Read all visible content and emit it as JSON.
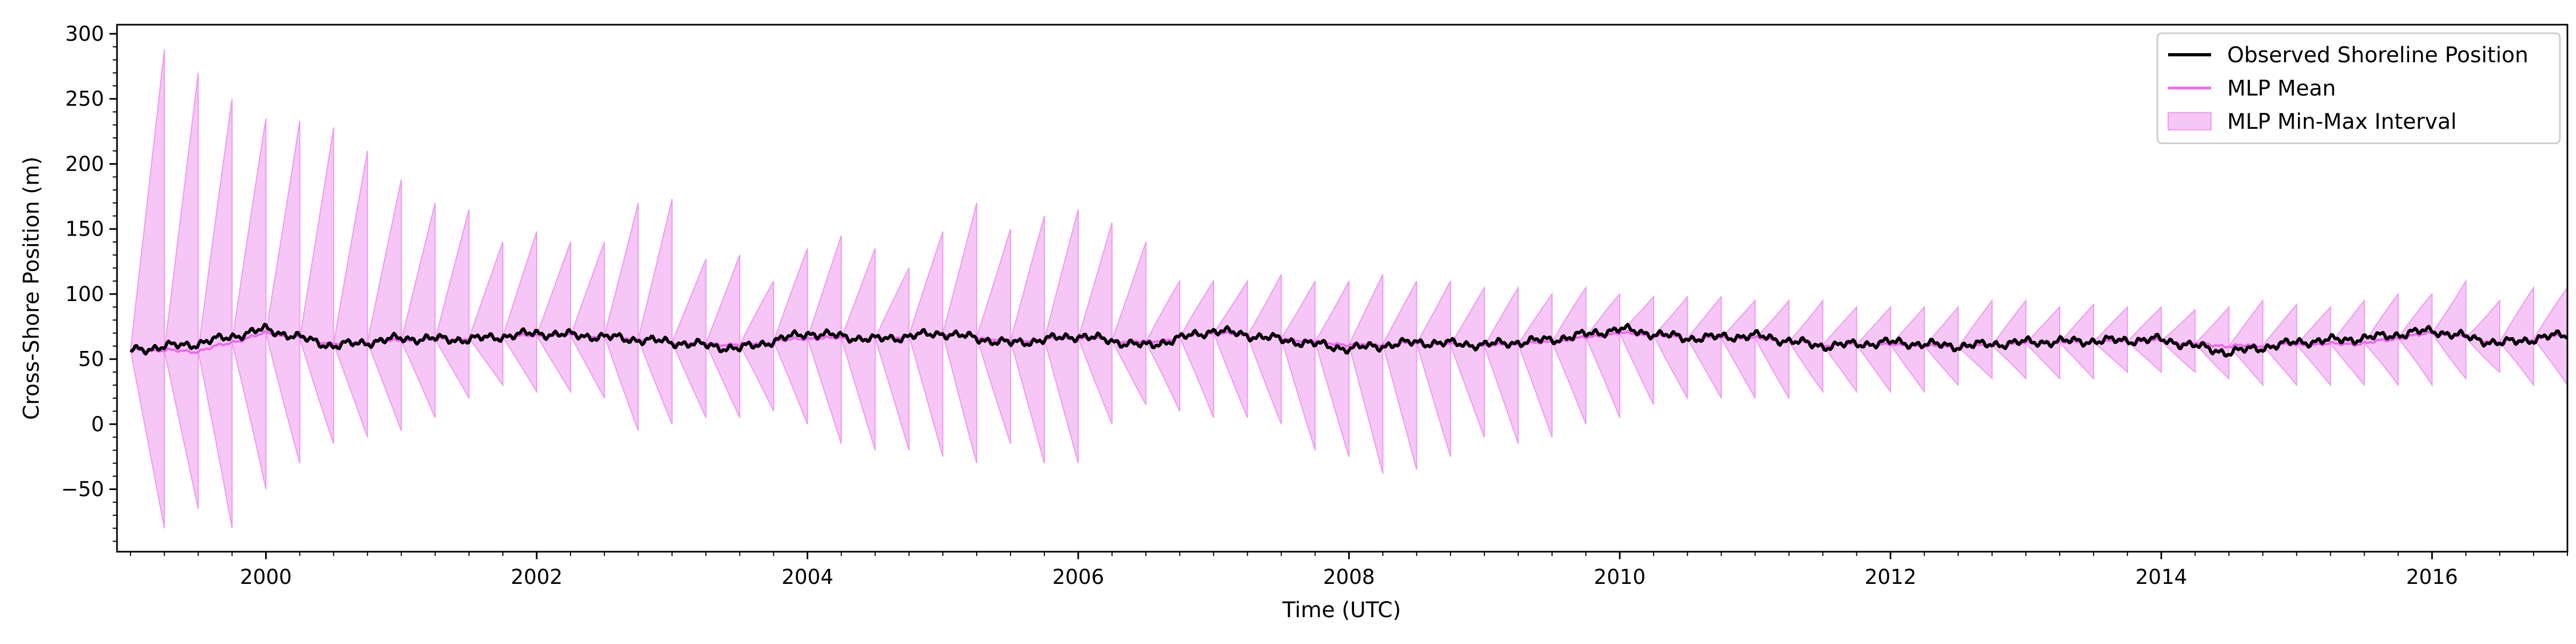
{
  "chart_data": {
    "type": "line",
    "title": "",
    "xlabel": "Time (UTC)",
    "ylabel": "Cross-Shore Position (m)",
    "xlim": [
      1998.9,
      2017.0
    ],
    "ylim": [
      -98,
      307
    ],
    "xticks": [
      2000,
      2002,
      2004,
      2006,
      2008,
      2010,
      2012,
      2014,
      2016
    ],
    "xtick_labels": [
      "2000",
      "2002",
      "2004",
      "2006",
      "2008",
      "2010",
      "2012",
      "2014",
      "2016"
    ],
    "yticks": [
      -50,
      0,
      50,
      100,
      150,
      200,
      250,
      300
    ],
    "ytick_labels": [
      "−50",
      "0",
      "50",
      "100",
      "150",
      "200",
      "250",
      "300"
    ],
    "grid": false,
    "legend_position": "top-right",
    "colors": {
      "observed": "#000000",
      "mean": "#ee66ee",
      "band_fill": "#f6c6f6",
      "band_edge": "#ee99ee"
    },
    "series": [
      {
        "name": "Observed Shoreline Position",
        "style": "line",
        "color": "#000000",
        "x": [
          1999.0,
          1999.5,
          2000.0,
          2000.5,
          2001.0,
          2001.5,
          2002.0,
          2002.5,
          2003.0,
          2003.5,
          2004.0,
          2004.5,
          2005.0,
          2005.5,
          2006.0,
          2006.5,
          2007.0,
          2007.5,
          2008.0,
          2008.5,
          2009.0,
          2009.5,
          2010.0,
          2010.5,
          2011.0,
          2011.5,
          2012.0,
          2012.5,
          2013.0,
          2013.5,
          2014.0,
          2014.5,
          2015.0,
          2015.5,
          2016.0,
          2016.5,
          2017.0
        ],
        "values": [
          57,
          62,
          73,
          60,
          66,
          65,
          70,
          67,
          63,
          58,
          70,
          65,
          70,
          62,
          68,
          60,
          72,
          65,
          58,
          63,
          61,
          65,
          73,
          66,
          68,
          60,
          63,
          60,
          63,
          64,
          65,
          55,
          63,
          66,
          72,
          62,
          69
        ]
      },
      {
        "name": "MLP Mean",
        "style": "line",
        "color": "#ee66ee",
        "x": [
          1999.0,
          1999.5,
          2000.0,
          2000.5,
          2001.0,
          2001.5,
          2002.0,
          2002.5,
          2003.0,
          2003.5,
          2004.0,
          2004.5,
          2005.0,
          2005.5,
          2006.0,
          2006.5,
          2007.0,
          2007.5,
          2008.0,
          2008.5,
          2009.0,
          2009.5,
          2010.0,
          2010.5,
          2011.0,
          2011.5,
          2012.0,
          2012.5,
          2013.0,
          2013.5,
          2014.0,
          2014.5,
          2015.0,
          2015.5,
          2016.0,
          2016.5,
          2017.0
        ],
        "values": [
          57,
          56,
          70,
          62,
          64,
          66,
          68,
          68,
          63,
          61,
          66,
          66,
          70,
          64,
          66,
          63,
          70,
          66,
          61,
          62,
          60,
          63,
          70,
          66,
          66,
          61,
          61,
          59,
          62,
          63,
          64,
          60,
          61,
          62,
          70,
          63,
          68
        ]
      },
      {
        "name": "MLP Min-Max Interval",
        "style": "band",
        "color": "#f6c6f6",
        "cycle_starts": [
          1999.0,
          1999.25,
          1999.5,
          1999.75,
          2000.0,
          2000.25,
          2000.5,
          2000.75,
          2001.0,
          2001.25,
          2001.5,
          2001.75,
          2002.0,
          2002.25,
          2002.5,
          2002.75,
          2003.0,
          2003.25,
          2003.5,
          2003.75,
          2004.0,
          2004.25,
          2004.5,
          2004.75,
          2005.0,
          2005.25,
          2005.5,
          2005.75,
          2006.0,
          2006.25,
          2006.5,
          2006.75,
          2007.0,
          2007.25,
          2007.5,
          2007.75,
          2008.0,
          2008.25,
          2008.5,
          2008.75,
          2009.0,
          2009.25,
          2009.5,
          2009.75,
          2010.0,
          2010.25,
          2010.5,
          2010.75,
          2011.0,
          2011.25,
          2011.5,
          2011.75,
          2012.0,
          2012.25,
          2012.5,
          2012.75,
          2013.0,
          2013.25,
          2013.5,
          2013.75,
          2014.0,
          2014.25,
          2014.5,
          2014.75,
          2015.0,
          2015.25,
          2015.5,
          2015.75,
          2016.0,
          2016.25,
          2016.5,
          2016.75
        ],
        "cycle_max": [
          288,
          270,
          250,
          235,
          233,
          228,
          210,
          188,
          170,
          165,
          140,
          148,
          140,
          140,
          170,
          173,
          127,
          130,
          110,
          135,
          145,
          135,
          120,
          148,
          170,
          150,
          160,
          165,
          155,
          140,
          110,
          110,
          110,
          115,
          110,
          110,
          115,
          110,
          110,
          105,
          105,
          100,
          105,
          100,
          98,
          98,
          98,
          95,
          95,
          95,
          90,
          90,
          90,
          90,
          95,
          95,
          90,
          92,
          90,
          90,
          88,
          90,
          95,
          92,
          90,
          95,
          100,
          100,
          110,
          95,
          105,
          105
        ],
        "cycle_min": [
          -80,
          -65,
          -80,
          -50,
          -30,
          -15,
          -10,
          -5,
          5,
          20,
          30,
          25,
          25,
          20,
          -5,
          0,
          5,
          5,
          10,
          0,
          -15,
          -20,
          -20,
          -25,
          -30,
          -15,
          -30,
          -30,
          0,
          15,
          10,
          5,
          5,
          0,
          -20,
          -25,
          -38,
          -35,
          -25,
          -10,
          -15,
          -10,
          0,
          5,
          15,
          20,
          20,
          20,
          20,
          25,
          25,
          25,
          25,
          30,
          35,
          35,
          35,
          35,
          40,
          40,
          40,
          35,
          30,
          30,
          30,
          30,
          30,
          30,
          35,
          40,
          30,
          30
        ]
      }
    ]
  }
}
